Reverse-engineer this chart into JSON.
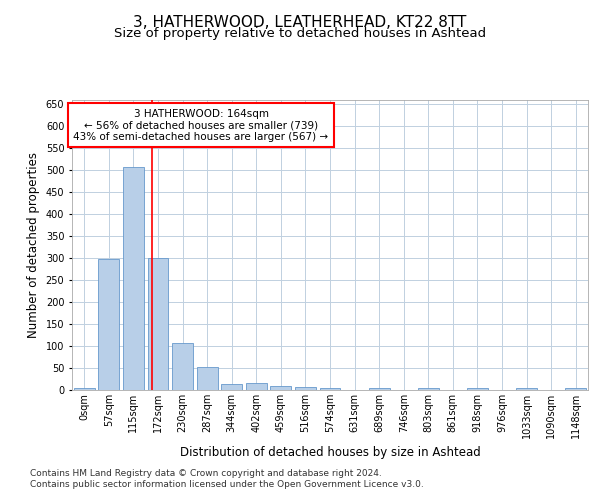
{
  "title1": "3, HATHERWOOD, LEATHERHEAD, KT22 8TT",
  "title2": "Size of property relative to detached houses in Ashtead",
  "xlabel": "Distribution of detached houses by size in Ashtead",
  "ylabel": "Number of detached properties",
  "bin_labels": [
    "0sqm",
    "57sqm",
    "115sqm",
    "172sqm",
    "230sqm",
    "287sqm",
    "344sqm",
    "402sqm",
    "459sqm",
    "516sqm",
    "574sqm",
    "631sqm",
    "689sqm",
    "746sqm",
    "803sqm",
    "861sqm",
    "918sqm",
    "976sqm",
    "1033sqm",
    "1090sqm",
    "1148sqm"
  ],
  "bar_values": [
    5,
    298,
    507,
    301,
    107,
    53,
    14,
    15,
    10,
    7,
    5,
    0,
    5,
    0,
    5,
    0,
    5,
    0,
    5,
    0,
    5
  ],
  "bar_color": "#b8cfe8",
  "bar_edge_color": "#6699cc",
  "vline_x": 2.75,
  "vline_color": "red",
  "annotation_text": "3 HATHERWOOD: 164sqm\n← 56% of detached houses are smaller (739)\n43% of semi-detached houses are larger (567) →",
  "annotation_box_color": "white",
  "annotation_box_edge_color": "red",
  "ylim": [
    0,
    660
  ],
  "yticks": [
    0,
    50,
    100,
    150,
    200,
    250,
    300,
    350,
    400,
    450,
    500,
    550,
    600,
    650
  ],
  "footer1": "Contains HM Land Registry data © Crown copyright and database right 2024.",
  "footer2": "Contains public sector information licensed under the Open Government Licence v3.0.",
  "title1_fontsize": 11,
  "title2_fontsize": 9.5,
  "axis_label_fontsize": 8.5,
  "tick_fontsize": 7,
  "annotation_fontsize": 7.5,
  "footer_fontsize": 6.5
}
